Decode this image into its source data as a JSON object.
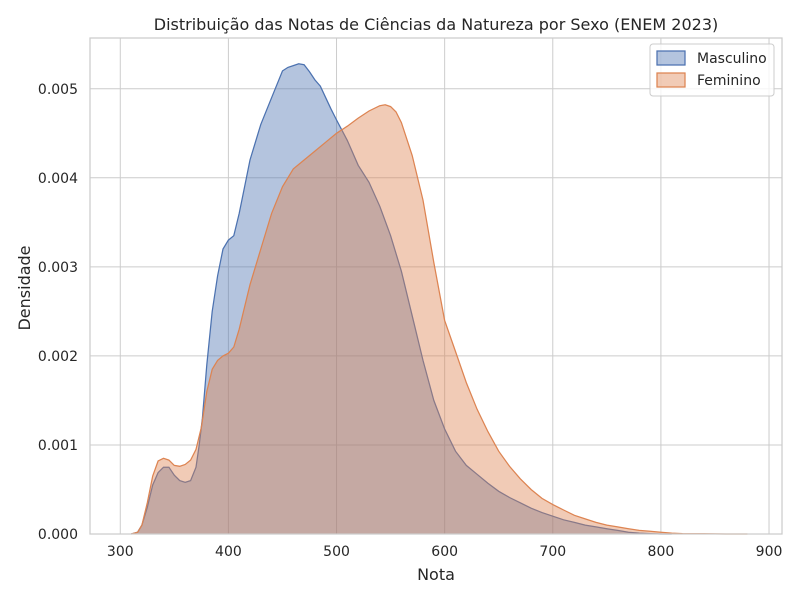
{
  "chart_data": {
    "type": "area",
    "title": "Distribuição das Notas de Ciências da Natureza por Sexo (ENEM 2023)",
    "xlabel": "Nota",
    "ylabel": "Densidade",
    "xlim": [
      272,
      912
    ],
    "ylim": [
      0,
      0.00557
    ],
    "xticks": [
      300,
      400,
      500,
      600,
      700,
      800,
      900
    ],
    "yticks": [
      0.0,
      0.001,
      0.002,
      0.003,
      0.004,
      0.005
    ],
    "xtick_labels": [
      "300",
      "400",
      "500",
      "600",
      "700",
      "800",
      "900"
    ],
    "ytick_labels": [
      "0.000",
      "0.001",
      "0.002",
      "0.003",
      "0.004",
      "0.005"
    ],
    "grid": true,
    "legend_position": "top-right",
    "series": [
      {
        "name": "Masculino",
        "color": "#4c72b0",
        "x": [
          310,
          316,
          320,
          325,
          330,
          335,
          340,
          345,
          350,
          355,
          360,
          365,
          370,
          373,
          376,
          380,
          385,
          390,
          395,
          400,
          405,
          410,
          415,
          420,
          425,
          430,
          440,
          450,
          455,
          460,
          465,
          470,
          475,
          480,
          485,
          490,
          495,
          500,
          510,
          520,
          530,
          540,
          550,
          560,
          570,
          580,
          590,
          600,
          610,
          620,
          630,
          640,
          650,
          660,
          670,
          680,
          690,
          700,
          710,
          720,
          730,
          740,
          750,
          760,
          770,
          780,
          790,
          800,
          810
        ],
        "y": [
          0.0,
          2e-05,
          0.0001,
          0.0003,
          0.00055,
          0.00069,
          0.00075,
          0.00075,
          0.00066,
          0.0006,
          0.00058,
          0.0006,
          0.00075,
          0.001,
          0.0013,
          0.0019,
          0.0025,
          0.0029,
          0.0032,
          0.0033,
          0.00335,
          0.0036,
          0.0039,
          0.0042,
          0.0044,
          0.0046,
          0.0049,
          0.0052,
          0.00524,
          0.00526,
          0.00528,
          0.00527,
          0.00519,
          0.0051,
          0.00503,
          0.0049,
          0.00477,
          0.00465,
          0.00442,
          0.00414,
          0.00395,
          0.00368,
          0.00335,
          0.00295,
          0.00245,
          0.00195,
          0.0015,
          0.00118,
          0.00093,
          0.00077,
          0.00067,
          0.00057,
          0.00048,
          0.00041,
          0.00035,
          0.00029,
          0.00024,
          0.0002,
          0.00016,
          0.00013,
          0.0001,
          8e-05,
          6e-05,
          4e-05,
          2e-05,
          1e-05,
          5e-06,
          0.0,
          0.0
        ]
      },
      {
        "name": "Feminino",
        "color": "#dd8452",
        "x": [
          310,
          316,
          320,
          325,
          330,
          335,
          340,
          345,
          350,
          355,
          360,
          365,
          370,
          375,
          380,
          385,
          390,
          395,
          400,
          405,
          410,
          415,
          420,
          430,
          440,
          450,
          460,
          470,
          480,
          490,
          500,
          510,
          520,
          530,
          540,
          545,
          550,
          555,
          560,
          570,
          580,
          590,
          600,
          610,
          620,
          630,
          640,
          650,
          660,
          670,
          680,
          690,
          700,
          710,
          720,
          730,
          740,
          750,
          760,
          770,
          780,
          790,
          800,
          810,
          820,
          840,
          860,
          880
        ],
        "y": [
          0.0,
          2e-05,
          0.0001,
          0.00035,
          0.00065,
          0.00082,
          0.00085,
          0.00083,
          0.00077,
          0.00076,
          0.00078,
          0.00083,
          0.00095,
          0.0012,
          0.0016,
          0.00185,
          0.00195,
          0.002,
          0.00203,
          0.0021,
          0.0023,
          0.00255,
          0.0028,
          0.0032,
          0.0036,
          0.0039,
          0.0041,
          0.0042,
          0.0043,
          0.0044,
          0.0045,
          0.00458,
          0.00467,
          0.00475,
          0.00481,
          0.00482,
          0.0048,
          0.00474,
          0.00462,
          0.00425,
          0.00375,
          0.00305,
          0.0024,
          0.00205,
          0.0017,
          0.0014,
          0.00115,
          0.00093,
          0.00076,
          0.00062,
          0.0005,
          0.0004,
          0.00033,
          0.00027,
          0.00021,
          0.00017,
          0.00013,
          0.0001,
          8e-05,
          6e-05,
          4e-05,
          3e-05,
          2e-05,
          1e-05,
          5e-06,
          2e-06,
          0.0,
          0.0
        ]
      }
    ]
  }
}
